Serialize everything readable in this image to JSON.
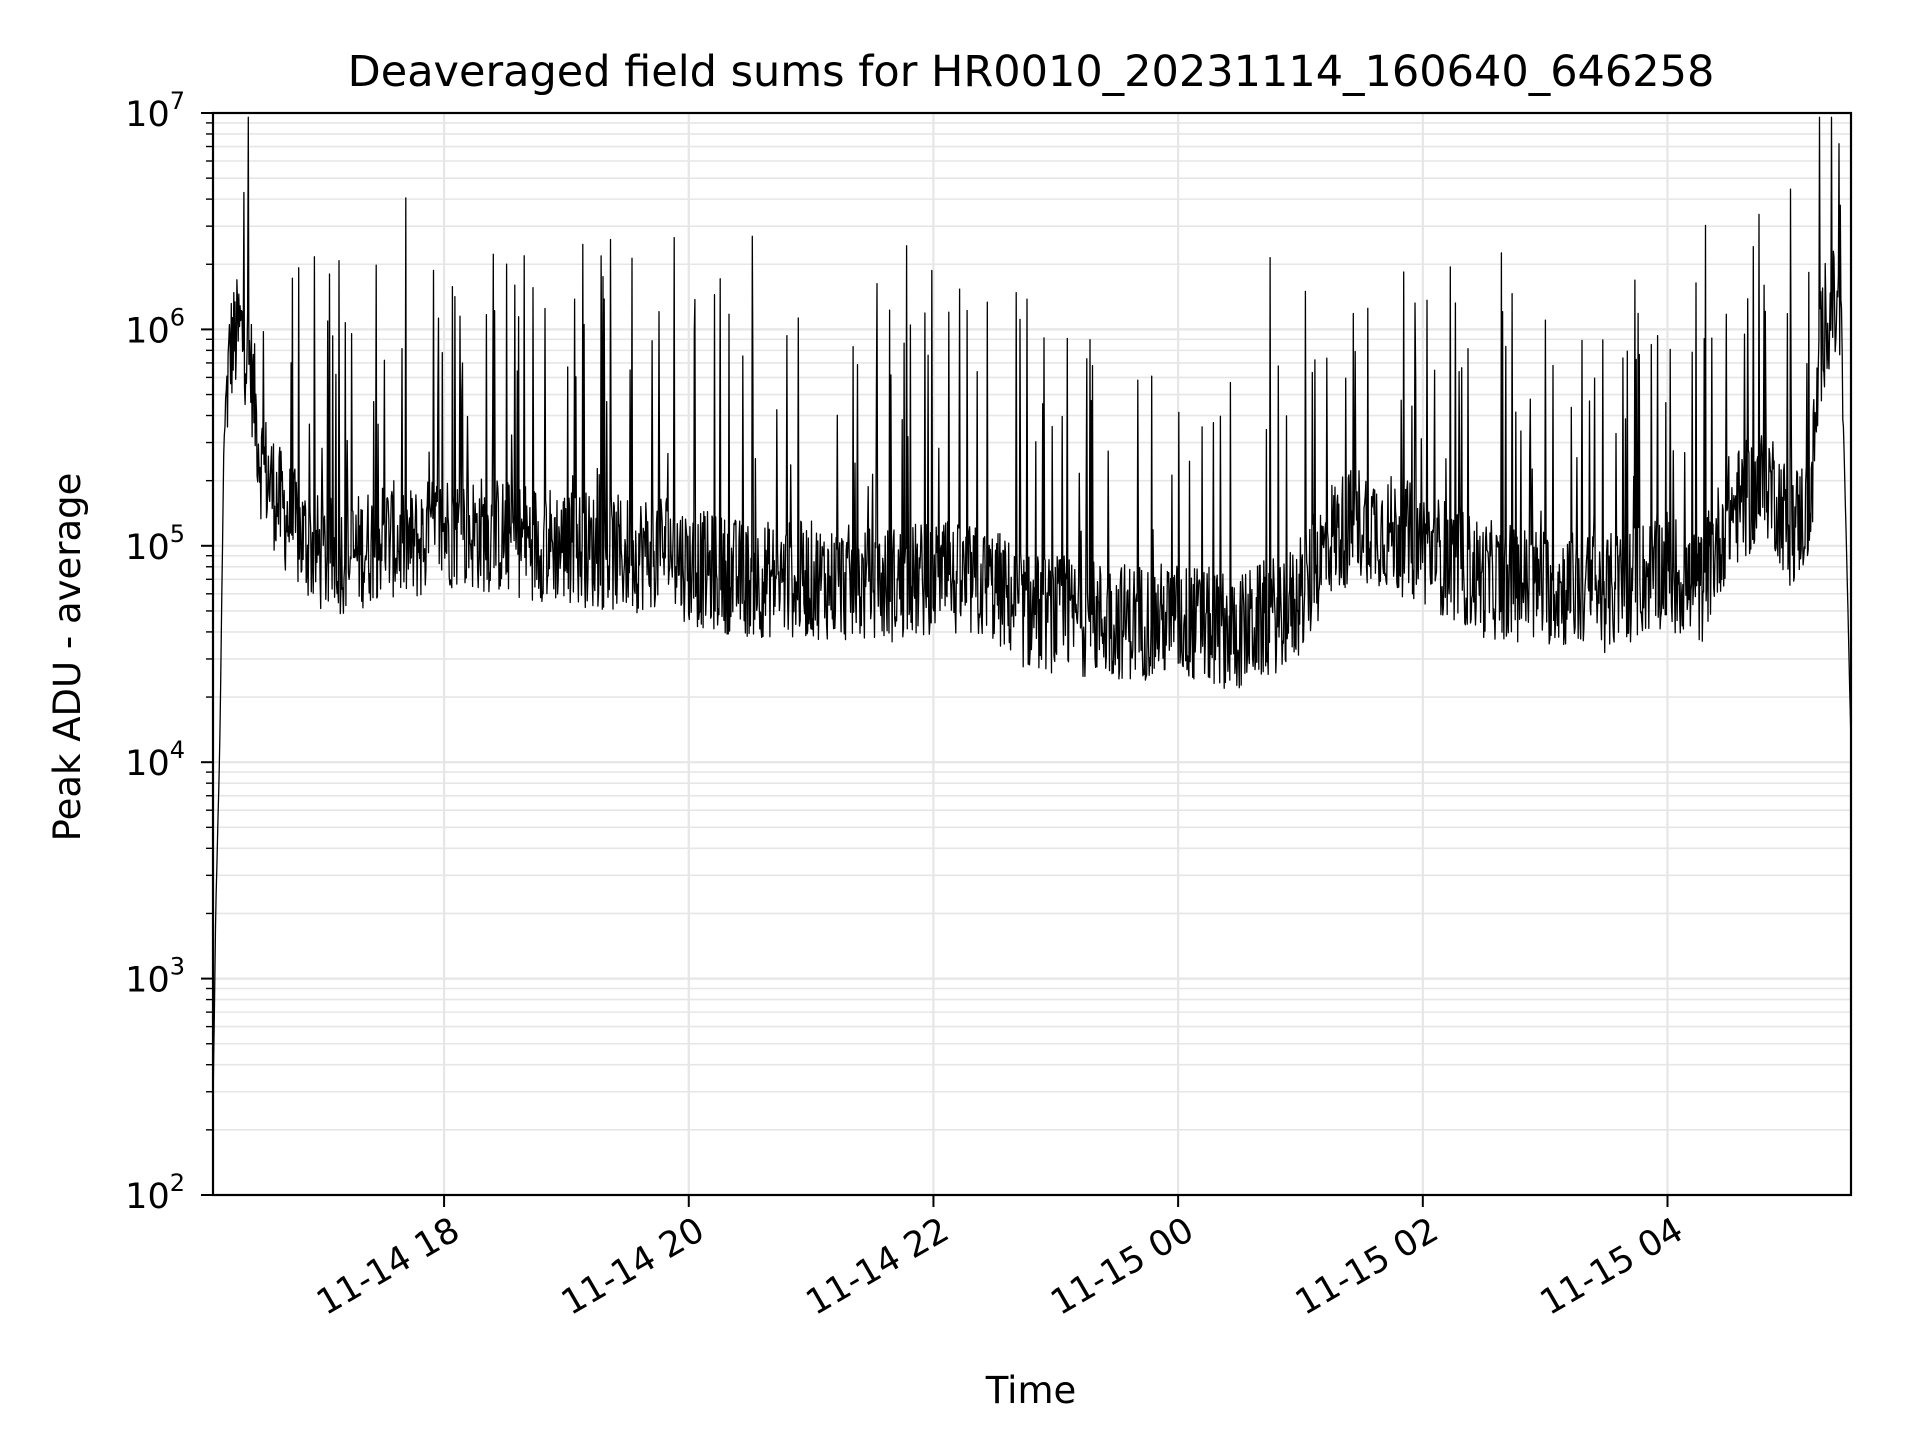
{
  "chart_data": {
    "type": "line",
    "title": "Deaveraged field sums for HR0010_20231114_160640_646258",
    "xlabel": "Time",
    "ylabel": "Peak ADU - average",
    "yscale": "log",
    "ylim": [
      100,
      10000000
    ],
    "xlim": [
      "2023-11-14 16:06:40",
      "2023-11-15 05:30:00"
    ],
    "grid": true,
    "colors": {
      "line": "#000000",
      "grid": "#e6e6e6",
      "axes": "#000000"
    },
    "x_ticks": [
      {
        "label": "11-14 18",
        "value": "2023-11-14 18:00"
      },
      {
        "label": "11-14 20",
        "value": "2023-11-14 20:00"
      },
      {
        "label": "11-14 22",
        "value": "2023-11-14 22:00"
      },
      {
        "label": "11-15 00",
        "value": "2023-11-15 00:00"
      },
      {
        "label": "11-15 02",
        "value": "2023-11-15 02:00"
      },
      {
        "label": "11-15 04",
        "value": "2023-11-15 04:00"
      }
    ],
    "y_ticks": [
      {
        "base": "10",
        "exp": "2",
        "value": 100
      },
      {
        "base": "10",
        "exp": "3",
        "value": 1000
      },
      {
        "base": "10",
        "exp": "4",
        "value": 10000
      },
      {
        "base": "10",
        "exp": "5",
        "value": 100000
      },
      {
        "base": "10",
        "exp": "6",
        "value": 1000000
      },
      {
        "base": "10",
        "exp": "7",
        "value": 10000000
      }
    ],
    "series": [
      {
        "x": [
          "2023-11-14 16:06:40",
          "2023-11-14 16:08",
          "2023-11-14 16:10",
          "2023-11-14 16:12",
          "2023-11-14 16:15",
          "2023-11-14 16:20",
          "2023-11-14 16:25",
          "2023-11-14 16:30",
          "2023-11-14 16:40",
          "2023-11-14 16:50",
          "2023-11-14 17:00",
          "2023-11-14 17:15",
          "2023-11-14 17:30",
          "2023-11-14 17:45",
          "2023-11-14 18:00",
          "2023-11-14 18:30",
          "2023-11-14 19:00",
          "2023-11-14 19:30",
          "2023-11-14 19:50",
          "2023-11-14 20:00",
          "2023-11-14 20:30",
          "2023-11-14 21:00",
          "2023-11-14 21:30",
          "2023-11-14 22:00",
          "2023-11-14 22:30",
          "2023-11-14 22:45",
          "2023-11-14 23:00",
          "2023-11-14 23:30",
          "2023-11-15 00:00",
          "2023-11-15 00:30",
          "2023-11-15 01:00",
          "2023-11-15 01:15",
          "2023-11-15 01:30",
          "2023-11-15 02:00",
          "2023-11-15 02:30",
          "2023-11-15 03:00",
          "2023-11-15 03:30",
          "2023-11-15 04:00",
          "2023-11-15 04:15",
          "2023-11-15 04:30",
          "2023-11-15 04:50",
          "2023-11-15 05:00",
          "2023-11-15 05:10",
          "2023-11-15 05:15",
          "2023-11-15 05:20",
          "2023-11-15 05:25",
          "2023-11-15 05:28",
          "2023-11-15 05:30"
        ],
        "y": [
          250,
          2000,
          12000,
          300000,
          800000,
          1000000,
          700000,
          250000,
          150000,
          110000,
          90000,
          90000,
          110000,
          100000,
          120000,
          110000,
          100000,
          90000,
          100000,
          80000,
          70000,
          70000,
          65000,
          70000,
          65000,
          50000,
          48000,
          45000,
          45000,
          40000,
          55000,
          110000,
          130000,
          100000,
          70000,
          65000,
          60000,
          80000,
          60000,
          140000,
          200000,
          120000,
          150000,
          800000,
          1300000,
          1100000,
          80000,
          12000
        ]
      }
    ]
  }
}
